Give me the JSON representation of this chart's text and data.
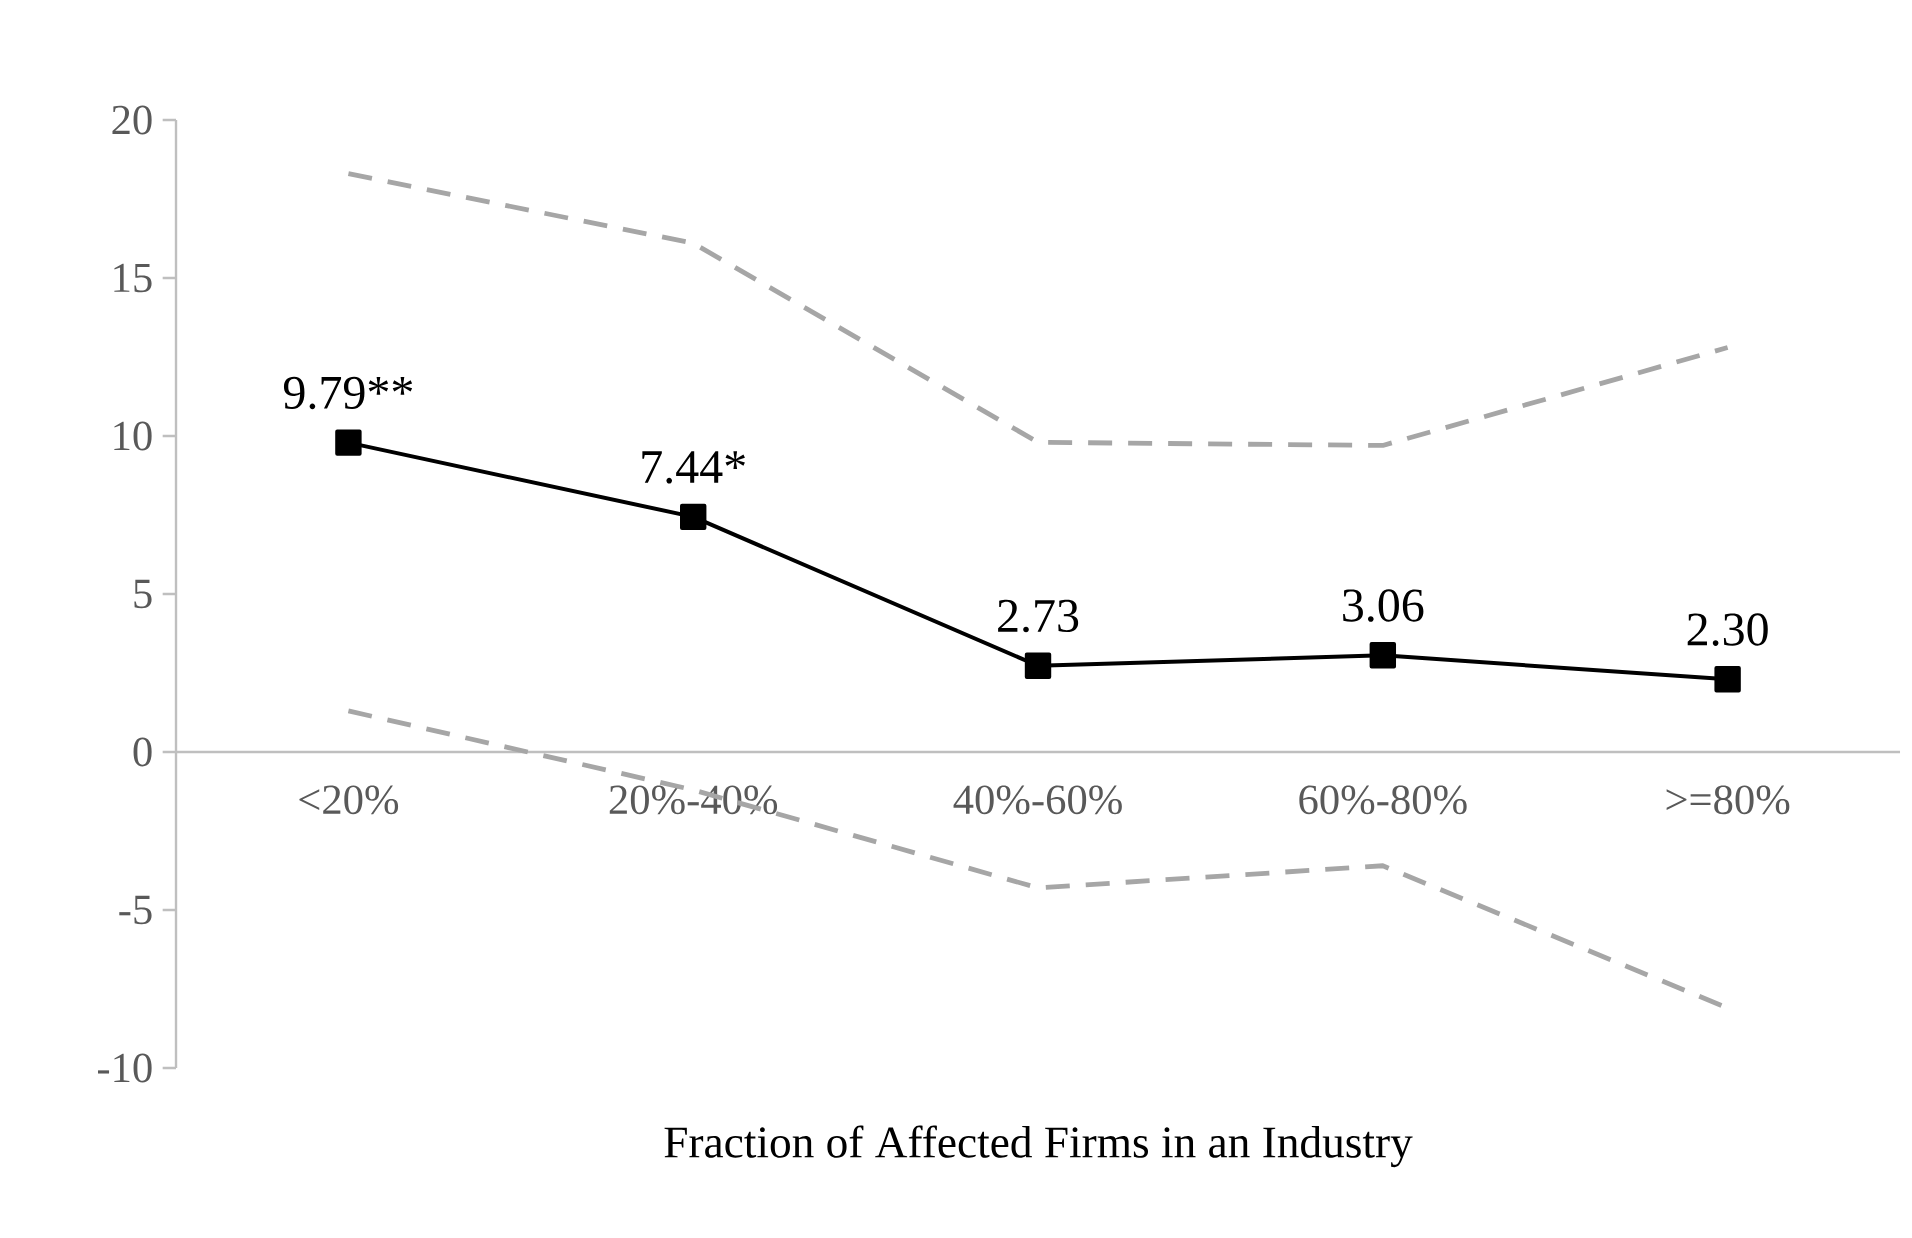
{
  "chart_data": {
    "type": "line",
    "xlabel": "Fraction of Affected Firms in an Industry",
    "categories": [
      "<20%",
      "20%-40%",
      "40%-60%",
      "60%-80%",
      ">=80%"
    ],
    "series": [
      {
        "color": "#a6a6a6",
        "values": [
          18.3,
          16.1,
          9.8,
          9.7,
          12.8
        ],
        "line_style": "dashed",
        "marker": "none"
      },
      {
        "color": "#a6a6a6",
        "values": [
          1.3,
          -1.2,
          -4.3,
          -3.6,
          -8.1
        ],
        "line_style": "dashed",
        "marker": "none"
      },
      {
        "color": "#000000",
        "values": [
          9.79,
          7.44,
          2.73,
          3.06,
          2.3
        ],
        "value_labels": [
          "9.79**",
          "7.44*",
          "2.73",
          "3.06",
          "2.30"
        ]
      }
    ],
    "ylim": [
      -10,
      20
    ],
    "yticks": [
      -10,
      -5,
      0,
      5,
      10,
      15,
      20
    ],
    "marker": "square",
    "line_style": "solid"
  }
}
